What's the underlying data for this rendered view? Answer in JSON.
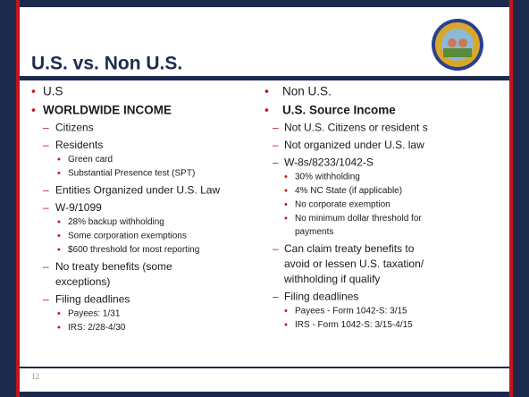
{
  "title": "U.S. vs. Non U.S.",
  "page_number": "12",
  "columns": [
    {
      "items": [
        {
          "level": 1,
          "lines": [
            "U.S"
          ]
        },
        {
          "level": 1,
          "bold": true,
          "lines": [
            "WORLDWIDE INCOME"
          ]
        },
        {
          "level": 2,
          "lines": [
            "Citizens"
          ]
        },
        {
          "level": 2,
          "lines": [
            "Residents"
          ]
        },
        {
          "level": 3,
          "lines": [
            "Green card"
          ]
        },
        {
          "level": 3,
          "lines": [
            "Substantial Presence test (SPT)"
          ]
        },
        {
          "level": 2,
          "lines": [
            "Entities Organized under U.S. Law"
          ]
        },
        {
          "level": 2,
          "lines": [
            "W-9/1099"
          ]
        },
        {
          "level": 3,
          "lines": [
            "28% backup withholding"
          ]
        },
        {
          "level": 3,
          "lines": [
            "Some corporation exemptions"
          ]
        },
        {
          "level": 3,
          "lines": [
            "$600 threshold for most reporting"
          ]
        },
        {
          "level": 2,
          "lines": [
            "No treaty benefits (some",
            "exceptions)"
          ]
        },
        {
          "level": 2,
          "lines": [
            "Filing deadlines"
          ]
        },
        {
          "level": 3,
          "lines": [
            "Payees: 1/31"
          ]
        },
        {
          "level": 3,
          "lines": [
            "IRS:  2/28-4/30"
          ]
        }
      ]
    },
    {
      "items": [
        {
          "level": 1,
          "lines": [
            "Non U.S."
          ]
        },
        {
          "level": 1,
          "bold": true,
          "lines": [
            "U.S. Source Income"
          ]
        },
        {
          "level": 2,
          "lines": [
            "Not U.S. Citizens or resident s"
          ]
        },
        {
          "level": 2,
          "lines": [
            "Not organized under U.S. law"
          ]
        },
        {
          "level": 2,
          "lines": [
            "W-8s/8233/1042-S"
          ]
        },
        {
          "level": 3,
          "lines": [
            "30% withholding"
          ]
        },
        {
          "level": 3,
          "lines": [
            "4% NC State (if applicable)"
          ]
        },
        {
          "level": 3,
          "lines": [
            "No corporate exemption"
          ]
        },
        {
          "level": 3,
          "lines": [
            "No minimum dollar threshold for",
            "payments"
          ]
        },
        {
          "level": 2,
          "lines": [
            "Can claim treaty benefits to",
            "avoid or lessen U.S. taxation/",
            "withholding if qualify"
          ]
        },
        {
          "level": 2,
          "lines": [
            "Filing deadlines"
          ]
        },
        {
          "level": 3,
          "lines": [
            "Payees  - Form 1042-S: 3/15"
          ]
        },
        {
          "level": 3,
          "lines": [
            "IRS - Form 1042-S:  3/15-4/15"
          ]
        }
      ]
    }
  ]
}
